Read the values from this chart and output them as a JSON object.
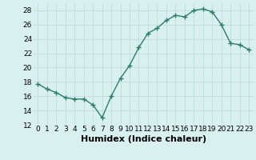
{
  "x": [
    0,
    1,
    2,
    3,
    4,
    5,
    6,
    7,
    8,
    9,
    10,
    11,
    12,
    13,
    14,
    15,
    16,
    17,
    18,
    19,
    20,
    21,
    22,
    23
  ],
  "y": [
    17.7,
    17.0,
    16.5,
    15.8,
    15.6,
    15.6,
    14.8,
    13.0,
    16.0,
    18.5,
    20.3,
    22.8,
    24.8,
    25.5,
    26.6,
    27.3,
    27.1,
    28.0,
    28.2,
    27.8,
    26.0,
    23.4,
    23.2,
    22.5
  ],
  "line_color": "#2e7d6e",
  "marker": "+",
  "marker_size": 4,
  "bg_color": "#d8f0ee",
  "grid_color": "#c0dcd8",
  "xlabel": "Humidex (Indice chaleur)",
  "xlabel_fontsize": 8,
  "ylim": [
    12,
    29
  ],
  "xlim": [
    -0.5,
    23.5
  ],
  "yticks": [
    12,
    14,
    16,
    18,
    20,
    22,
    24,
    26,
    28
  ],
  "xticks": [
    0,
    1,
    2,
    3,
    4,
    5,
    6,
    7,
    8,
    9,
    10,
    11,
    12,
    13,
    14,
    15,
    16,
    17,
    18,
    19,
    20,
    21,
    22,
    23
  ],
  "tick_fontsize": 6.5,
  "linewidth": 1.0
}
